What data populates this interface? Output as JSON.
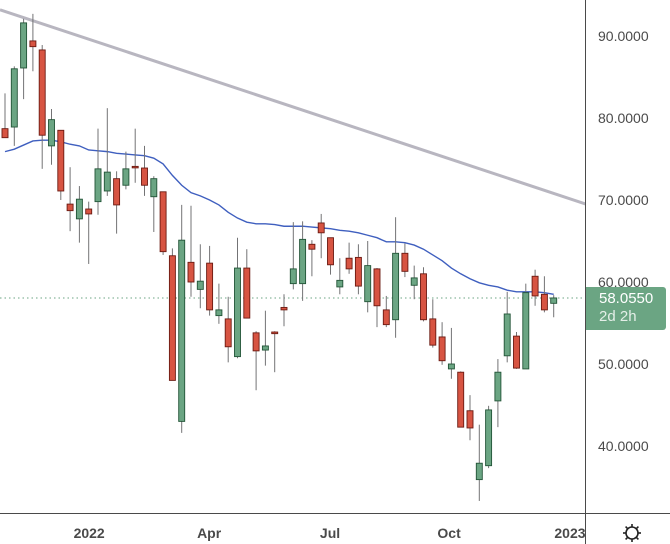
{
  "chart_data": {
    "type": "candlestick",
    "title": "",
    "xlabel": "",
    "ylabel": "",
    "ylim": [
      30,
      93
    ],
    "grid": false,
    "y_ticks": [
      "90.0000",
      "80.0000",
      "70.0000",
      "60.0000",
      "50.0000",
      "40.0000"
    ],
    "y_tick_values": [
      90,
      80,
      70,
      60,
      50,
      40
    ],
    "x_ticks": [
      "2022",
      "Apr",
      "Jul",
      "Oct",
      "2023"
    ],
    "interval": "weekly",
    "ohlc": [
      [
        78.7,
        83.0,
        77.6,
        77.6
      ],
      [
        78.9,
        86.3,
        76.6,
        86.0
      ],
      [
        86.1,
        92.1,
        82.3,
        91.6
      ],
      [
        89.4,
        92.7,
        85.7,
        88.7
      ],
      [
        88.3,
        88.9,
        73.8,
        77.9
      ],
      [
        76.6,
        81.1,
        74.3,
        79.8
      ],
      [
        78.5,
        78.5,
        70.0,
        71.1
      ],
      [
        69.5,
        74.0,
        66.2,
        68.7
      ],
      [
        67.7,
        71.7,
        64.8,
        70.1
      ],
      [
        68.9,
        69.8,
        62.2,
        68.3
      ],
      [
        69.8,
        78.7,
        68.2,
        73.8
      ],
      [
        71.1,
        81.2,
        70.5,
        73.4
      ],
      [
        72.6,
        73.5,
        65.9,
        69.4
      ],
      [
        71.8,
        75.9,
        71.3,
        73.8
      ],
      [
        74.1,
        78.7,
        72.1,
        74.0
      ],
      [
        73.9,
        76.6,
        70.5,
        71.8
      ],
      [
        70.4,
        72.9,
        66.1,
        72.6
      ],
      [
        71.0,
        71.0,
        63.3,
        63.7
      ],
      [
        63.2,
        64.1,
        48.0,
        48.0
      ],
      [
        43.0,
        69.4,
        41.6,
        65.1
      ],
      [
        62.4,
        69.3,
        58.2,
        60.0
      ],
      [
        59.1,
        64.6,
        56.8,
        60.1
      ],
      [
        62.3,
        64.4,
        55.9,
        56.6
      ],
      [
        55.9,
        59.8,
        54.9,
        56.6
      ],
      [
        55.5,
        58.2,
        50.2,
        52.1
      ],
      [
        50.9,
        65.4,
        50.7,
        61.7
      ],
      [
        61.7,
        64.0,
        55.6,
        55.6
      ],
      [
        53.8,
        54.0,
        46.8,
        51.6
      ],
      [
        51.7,
        56.5,
        49.8,
        52.2
      ],
      [
        53.9,
        54.0,
        49.0,
        53.7
      ],
      [
        56.9,
        58.5,
        54.6,
        56.6
      ],
      [
        59.8,
        67.3,
        59.1,
        61.6
      ],
      [
        59.8,
        67.4,
        57.7,
        65.2
      ],
      [
        64.6,
        65.1,
        60.7,
        64.0
      ],
      [
        67.2,
        68.3,
        62.9,
        66.0
      ],
      [
        65.4,
        65.4,
        60.9,
        62.1
      ],
      [
        59.4,
        62.9,
        58.5,
        60.2
      ],
      [
        62.9,
        64.8,
        61.0,
        61.6
      ],
      [
        63.0,
        64.6,
        58.5,
        59.5
      ],
      [
        57.6,
        65.0,
        56.3,
        62.0
      ],
      [
        61.6,
        61.7,
        54.5,
        57.1
      ],
      [
        56.6,
        58.3,
        54.5,
        54.8
      ],
      [
        55.4,
        67.9,
        53.2,
        63.5
      ],
      [
        63.5,
        64.7,
        60.6,
        61.3
      ],
      [
        59.6,
        62.0,
        57.9,
        60.5
      ],
      [
        61.0,
        61.8,
        55.2,
        55.4
      ],
      [
        55.5,
        57.9,
        52.0,
        52.3
      ],
      [
        53.3,
        55.1,
        49.9,
        50.4
      ],
      [
        49.4,
        54.4,
        48.2,
        50.0
      ],
      [
        49.0,
        49.1,
        42.3,
        42.3
      ],
      [
        44.3,
        46.2,
        40.7,
        42.2
      ],
      [
        35.9,
        42.6,
        33.3,
        37.9
      ],
      [
        37.6,
        44.9,
        37.3,
        44.4
      ],
      [
        45.5,
        50.6,
        42.3,
        49.0
      ],
      [
        51.0,
        58.8,
        50.2,
        56.1
      ],
      [
        53.4,
        53.9,
        49.4,
        49.5
      ],
      [
        49.4,
        59.8,
        49.4,
        58.7
      ],
      [
        60.7,
        61.5,
        57.1,
        58.3
      ],
      [
        58.5,
        60.7,
        56.3,
        56.6
      ],
      [
        57.4,
        58.4,
        55.7,
        58.055
      ]
    ],
    "moving_average": [
      75.9,
      76.2,
      76.7,
      77.2,
      77.3,
      77.3,
      77.1,
      76.8,
      76.6,
      76.1,
      76.0,
      75.9,
      75.7,
      75.6,
      75.5,
      75.4,
      75.1,
      74.4,
      73.0,
      71.8,
      70.9,
      70.5,
      70.0,
      69.4,
      68.5,
      67.8,
      67.3,
      67.1,
      67.1,
      67.0,
      66.8,
      66.8,
      66.8,
      66.7,
      66.6,
      66.5,
      66.3,
      66.2,
      66.0,
      65.7,
      65.4,
      64.9,
      64.9,
      64.8,
      64.5,
      64.0,
      63.3,
      62.6,
      61.7,
      61.0,
      60.4,
      59.9,
      59.6,
      59.4,
      59.0,
      58.8,
      58.8,
      58.8,
      58.7,
      58.5
    ],
    "trendline": {
      "start_price": 93.2,
      "end_price": 69.5
    },
    "last_price": 58.055,
    "colors": {
      "up": "#6ba583",
      "up_border": "#225437",
      "down": "#d75442",
      "down_border": "#6b1a12",
      "wick": "#737375",
      "ma": "#3f5fbf",
      "trendline": "#b8b6c0",
      "last_price": "#6ba583"
    }
  },
  "price_tag": {
    "price": "58.0550",
    "countdown": "2d 2h"
  },
  "settings_icon": "gear-icon"
}
